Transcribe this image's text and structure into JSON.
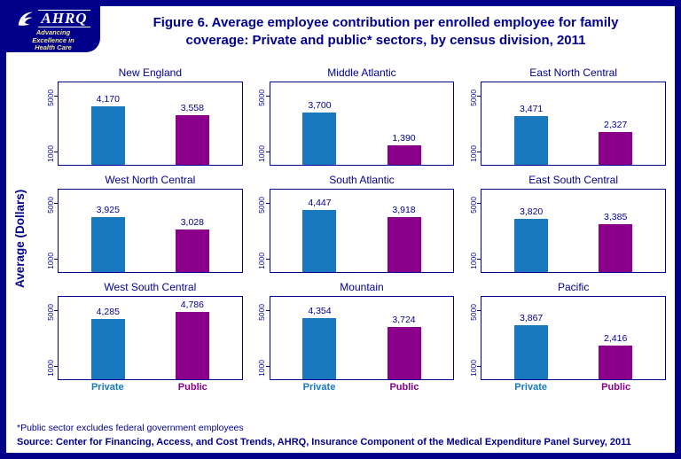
{
  "header": {
    "logo": {
      "brand": "AHRQ",
      "tagline_line1": "Advancing",
      "tagline_line2": "Excellence in",
      "tagline_line3": "Health Care"
    },
    "title_line1": "Figure 6. Average employee contribution per enrolled employee for family",
    "title_line2": "coverage: Private and public* sectors, by census division, 2011"
  },
  "chart_data": {
    "type": "bar",
    "layout": "3x3 small multiples by census division",
    "title": "Average employee contribution per enrolled employee for family coverage: Private and public sectors, by census division, 2011",
    "ylabel": "Average (Dollars)",
    "ylim": [
      0,
      6000
    ],
    "yticks": [
      1000,
      5000
    ],
    "grid": false,
    "categories": [
      "Private",
      "Public"
    ],
    "colors": {
      "private": "#1879BE",
      "public": "#8B008B"
    },
    "panels": [
      {
        "title": "New England",
        "values": [
          4170,
          3558
        ],
        "labels": [
          "4,170",
          "3,558"
        ]
      },
      {
        "title": "Middle Atlantic",
        "values": [
          3700,
          1390
        ],
        "labels": [
          "3,700",
          "1,390"
        ]
      },
      {
        "title": "East North Central",
        "values": [
          3471,
          2327
        ],
        "labels": [
          "3,471",
          "2,327"
        ]
      },
      {
        "title": "West North Central",
        "values": [
          3925,
          3028
        ],
        "labels": [
          "3,925",
          "3,028"
        ]
      },
      {
        "title": "South Atlantic",
        "values": [
          4447,
          3918
        ],
        "labels": [
          "4,447",
          "3,918"
        ]
      },
      {
        "title": "East South Central",
        "values": [
          3820,
          3385
        ],
        "labels": [
          "3,820",
          "3,385"
        ]
      },
      {
        "title": "West South Central",
        "values": [
          4285,
          4786
        ],
        "labels": [
          "4,285",
          "4,786"
        ]
      },
      {
        "title": "Mountain",
        "values": [
          4354,
          3724
        ],
        "labels": [
          "4,354",
          "3,724"
        ]
      },
      {
        "title": "Pacific",
        "values": [
          3867,
          2416
        ],
        "labels": [
          "3,867",
          "2,416"
        ]
      }
    ]
  },
  "footnotes": {
    "note": "*Public sector excludes federal government employees",
    "source": "Source: Center for Financing, Access, and Cost Trends, AHRQ, Insurance Component of the Medical Expenditure Panel Survey, 2011"
  }
}
